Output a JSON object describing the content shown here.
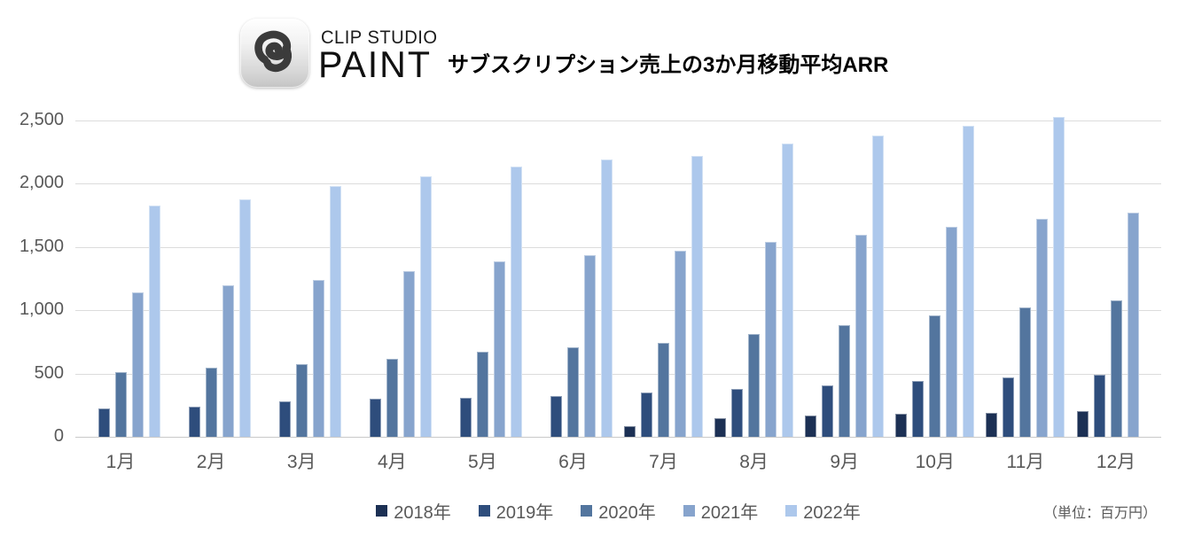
{
  "header": {
    "brand_line1": "CLIP STUDIO",
    "brand_line2": "PAINT",
    "title": "サブスクリプション売上の3か月移動平均ARR"
  },
  "chart_data": {
    "type": "bar",
    "title": "サブスクリプション売上の3か月移動平均ARR",
    "unit_note": "（単位：百万円）",
    "categories": [
      "1月",
      "2月",
      "3月",
      "4月",
      "5月",
      "6月",
      "7月",
      "8月",
      "9月",
      "10月",
      "11月",
      "12月"
    ],
    "series": [
      {
        "name": "2018年",
        "color": "#1c3054",
        "values": [
          null,
          null,
          null,
          null,
          null,
          null,
          85,
          145,
          165,
          180,
          190,
          205
        ]
      },
      {
        "name": "2019年",
        "color": "#2e4d7c",
        "values": [
          225,
          240,
          280,
          300,
          310,
          325,
          350,
          380,
          410,
          440,
          470,
          490
        ]
      },
      {
        "name": "2020年",
        "color": "#53759e",
        "values": [
          515,
          550,
          575,
          620,
          670,
          710,
          740,
          810,
          880,
          960,
          1020,
          1080
        ]
      },
      {
        "name": "2021年",
        "color": "#87a4cd",
        "values": [
          1145,
          1195,
          1240,
          1310,
          1390,
          1435,
          1470,
          1540,
          1600,
          1660,
          1720,
          1770
        ]
      },
      {
        "name": "2022年",
        "color": "#adc8ec",
        "values": [
          1830,
          1880,
          1985,
          2060,
          2135,
          2190,
          2220,
          2315,
          2380,
          2460,
          2525,
          null
        ]
      }
    ],
    "ylim": [
      0,
      2500
    ],
    "yticks": [
      0,
      500,
      1000,
      1500,
      2000,
      2500
    ],
    "ytick_labels": [
      "0",
      "500",
      "1,000",
      "1,500",
      "2,000",
      "2,500"
    ],
    "grid": true,
    "legend_position": "bottom",
    "axis_text_color": "#595959",
    "gridline_color": "#dcdcdc"
  }
}
